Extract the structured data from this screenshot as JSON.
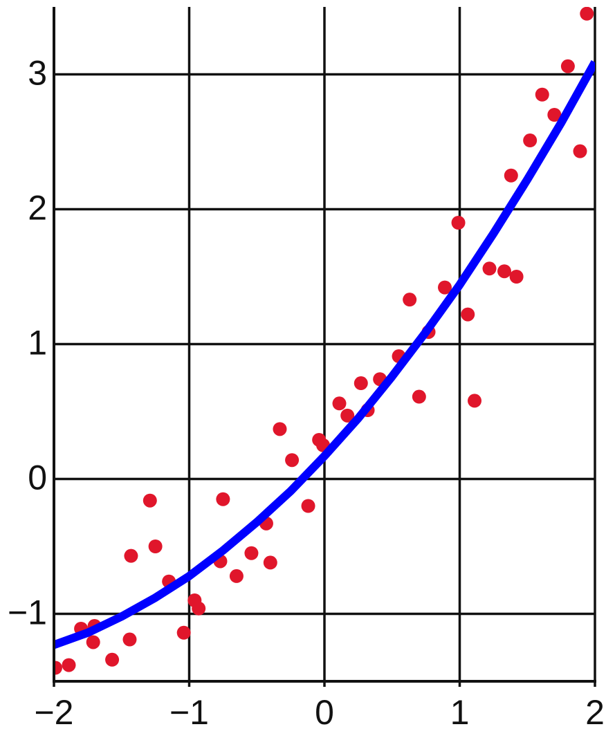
{
  "chart_data": {
    "type": "scatter",
    "xlim": [
      -2,
      2
    ],
    "ylim": [
      -1.5,
      3.5
    ],
    "xticks": [
      {
        "value": -2,
        "label": "−2"
      },
      {
        "value": -1,
        "label": "−1"
      },
      0,
      1,
      2
    ],
    "yticks": [
      {
        "value": -1,
        "label": "−1"
      },
      0,
      1,
      2,
      3
    ],
    "grid": true,
    "series": [
      {
        "type": "scatter",
        "color": "#e0162b",
        "x": [
          -1.99,
          -1.89,
          -1.8,
          -1.7,
          -1.71,
          -1.57,
          -1.44,
          -1.43,
          -1.29,
          -1.25,
          -1.15,
          -1.04,
          -0.96,
          -0.93,
          -0.77,
          -0.75,
          -0.65,
          -0.54,
          -0.43,
          -0.4,
          -0.33,
          -0.24,
          -0.12,
          -0.04,
          -0.01,
          0.11,
          0.17,
          0.27,
          0.32,
          0.41,
          0.55,
          0.63,
          0.7,
          0.77,
          0.89,
          0.99,
          1.06,
          1.11,
          1.22,
          1.33,
          1.38,
          1.42,
          1.52,
          1.61,
          1.7,
          1.8,
          1.89,
          1.94
        ],
        "values": [
          -1.4,
          -1.38,
          -1.11,
          -1.09,
          -1.21,
          -1.34,
          -1.19,
          -0.57,
          -0.16,
          -0.5,
          -0.76,
          -1.14,
          -0.9,
          -0.96,
          -0.61,
          -0.15,
          -0.72,
          -0.55,
          -0.33,
          -0.62,
          0.37,
          0.14,
          -0.2,
          0.29,
          0.25,
          0.56,
          0.47,
          0.71,
          0.51,
          0.74,
          0.91,
          1.33,
          0.61,
          1.09,
          1.42,
          1.9,
          1.22,
          0.58,
          1.56,
          1.54,
          2.25,
          1.5,
          2.51,
          2.85,
          2.7,
          3.06,
          2.43,
          3.45
        ]
      },
      {
        "type": "line",
        "color": "#0000ff",
        "x": [
          -2,
          -1.75,
          -1.5,
          -1.25,
          -1,
          -0.75,
          -0.5,
          -0.25,
          0,
          0.25,
          0.5,
          0.75,
          1,
          1.25,
          1.5,
          1.75,
          2
        ],
        "values": [
          -1.23,
          -1.14,
          -1.02,
          -0.88,
          -0.72,
          -0.53,
          -0.32,
          -0.09,
          0.17,
          0.45,
          0.76,
          1.09,
          1.44,
          1.82,
          2.22,
          2.64,
          3.09
        ]
      }
    ]
  }
}
